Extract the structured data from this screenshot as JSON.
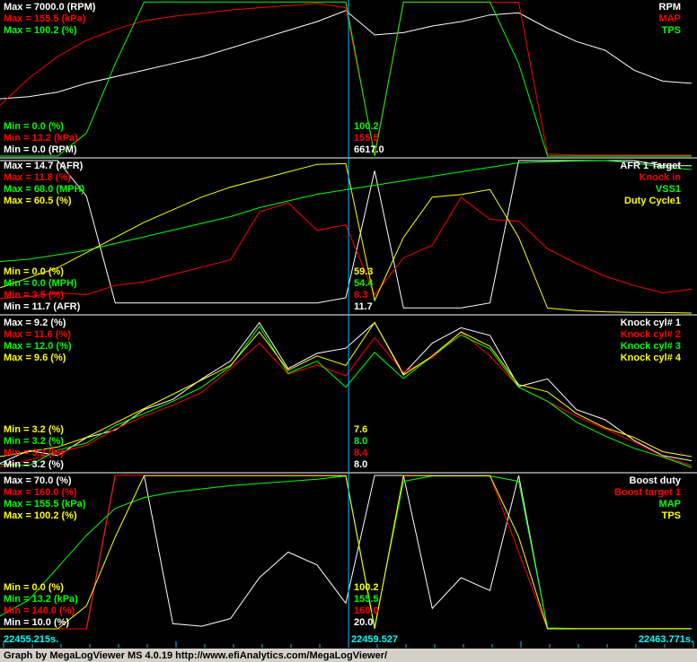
{
  "chart_data": [
    {
      "type": "line",
      "x": [
        22455.215,
        22455.572,
        22455.928,
        22456.285,
        22456.641,
        22456.998,
        22457.354,
        22457.711,
        22458.067,
        22458.424,
        22458.78,
        22459.137,
        22459.493,
        22459.85,
        22460.206,
        22460.563,
        22460.919,
        22461.276,
        22461.632,
        22461.989,
        22462.345,
        22462.702,
        22463.058,
        22463.415,
        22463.771
      ],
      "xlim": [
        22455.215,
        22463.771
      ],
      "series": [
        {
          "name": "RPM",
          "color": "#ffffff",
          "ylim": [
            0,
            7000
          ],
          "yticks": [
            {
              "value": 0,
              "label": "Min = 0.0 (RPM)"
            },
            {
              "value": 7000,
              "label": "Max = 7000.0 (RPM)"
            }
          ],
          "cursor_label": "6617.0",
          "values": [
            2600,
            2700,
            2900,
            3300,
            3600,
            3900,
            4200,
            4500,
            4900,
            5300,
            5700,
            6100,
            6600,
            5500,
            5600,
            5900,
            6100,
            6400,
            6500,
            5800,
            5200,
            4800,
            3900,
            3400,
            3300
          ]
        },
        {
          "name": "MAP",
          "color": "#ff0000",
          "ylim": [
            13.2,
            155.5
          ],
          "yticks": [
            {
              "value": 13.2,
              "label": "Min = 13.2 (kPa)"
            },
            {
              "value": 155.5,
              "label": "Max = 155.5 (kPa)"
            }
          ],
          "cursor_label": "155.5",
          "values": [
            60,
            85,
            105,
            120,
            130,
            138,
            142,
            145,
            148,
            150,
            152,
            154,
            150,
            15,
            155,
            155,
            155,
            155,
            155,
            15,
            14,
            14,
            14,
            14,
            14
          ]
        },
        {
          "name": "TPS",
          "color": "#00ff00",
          "ylim": [
            0,
            100.2
          ],
          "yticks": [
            {
              "value": 0,
              "label": "Min = 0.0 (%)"
            },
            {
              "value": 100.2,
              "label": "Max = 100.2 (%)"
            }
          ],
          "cursor_label": "100.2",
          "values": [
            0,
            0,
            0,
            15,
            60,
            100,
            100,
            100,
            100,
            100,
            100,
            100,
            100,
            0,
            100,
            100,
            100,
            100,
            60,
            0,
            0,
            0,
            0,
            0,
            0
          ]
        }
      ]
    },
    {
      "type": "line",
      "x": [
        22455.215,
        22455.572,
        22455.928,
        22456.285,
        22456.641,
        22456.998,
        22457.354,
        22457.711,
        22458.067,
        22458.424,
        22458.78,
        22459.137,
        22459.493,
        22459.85,
        22460.206,
        22460.563,
        22460.919,
        22461.276,
        22461.632,
        22461.989,
        22462.345,
        22462.702,
        22463.058,
        22463.415,
        22463.771
      ],
      "xlim": [
        22455.215,
        22463.771
      ],
      "series": [
        {
          "name": "AFR 1 Target",
          "color": "#ffffff",
          "ylim": [
            11.7,
            14.7
          ],
          "yticks": [
            {
              "value": 11.7,
              "label": "Min = 11.7 (AFR)"
            },
            {
              "value": 14.7,
              "label": "Max = 14.7 (AFR)"
            }
          ],
          "cursor_label": "11.7",
          "values": [
            14.7,
            14.7,
            14.7,
            14.0,
            11.9,
            11.9,
            11.9,
            11.9,
            11.9,
            11.9,
            11.9,
            11.9,
            12.0,
            14.5,
            11.8,
            11.8,
            11.8,
            11.9,
            14.7,
            14.7,
            14.7,
            14.7,
            14.7,
            14.6,
            14.6
          ]
        },
        {
          "name": "Knock in",
          "color": "#ff0000",
          "ylim": [
            3.5,
            11.8
          ],
          "yticks": [
            {
              "value": 3.5,
              "label": "Min = 3.5 (%)"
            },
            {
              "value": 11.8,
              "label": "Max = 11.8 (%)"
            }
          ],
          "cursor_label": "8.3",
          "values": [
            4.3,
            4.4,
            4.6,
            4.5,
            5.0,
            5.2,
            5.6,
            6.0,
            6.4,
            9.0,
            9.5,
            8.0,
            8.3,
            4.5,
            6.5,
            7.2,
            9.8,
            8.6,
            8.5,
            7.0,
            6.2,
            5.5,
            5.0,
            4.6,
            4.8
          ]
        },
        {
          "name": "VSS1",
          "color": "#00ff00",
          "ylim": [
            0,
            68
          ],
          "yticks": [
            {
              "value": 0,
              "label": "Min = 0.0 (MPH)"
            },
            {
              "value": 68,
              "label": "Max = 68.0 (MPH)"
            }
          ],
          "cursor_label": "54.4",
          "values": [
            23,
            24,
            26,
            28,
            31,
            34,
            37,
            40,
            43,
            47,
            50,
            53,
            55,
            57,
            59,
            61,
            63,
            65,
            67,
            67.5,
            67.8,
            68,
            67,
            65,
            64
          ]
        },
        {
          "name": "Duty Cycle1",
          "color": "#ffff00",
          "ylim": [
            0,
            60.5
          ],
          "yticks": [
            {
              "value": 0,
              "label": "Min = 0.0 (%)"
            },
            {
              "value": 60.5,
              "label": "Max = 60.5 (%)"
            }
          ],
          "cursor_label": "59.3",
          "values": [
            10,
            14,
            18,
            24,
            30,
            36,
            41,
            46,
            50,
            53,
            56,
            59,
            59.3,
            5,
            30,
            46,
            47,
            49,
            30,
            2,
            1,
            0.5,
            0.3,
            0.2,
            0
          ]
        }
      ]
    },
    {
      "type": "line",
      "x": [
        22455.215,
        22455.572,
        22455.928,
        22456.285,
        22456.641,
        22456.998,
        22457.354,
        22457.711,
        22458.067,
        22458.424,
        22458.78,
        22459.137,
        22459.493,
        22459.85,
        22460.206,
        22460.563,
        22460.919,
        22461.276,
        22461.632,
        22461.989,
        22462.345,
        22462.702,
        22463.058,
        22463.415,
        22463.771
      ],
      "xlim": [
        22455.215,
        22463.771
      ],
      "series": [
        {
          "name": "Knock cyl# 1",
          "color": "#ffffff",
          "ylim": [
            3.2,
            9.2
          ],
          "yticks": [
            {
              "value": 3.2,
              "label": "Min = 3.2 (%)"
            },
            {
              "value": 9.2,
              "label": "Max = 9.2 (%)"
            }
          ],
          "cursor_label": "8.0",
          "values": [
            3.5,
            4.0,
            3.8,
            4.5,
            4.8,
            5.6,
            6.0,
            6.8,
            7.5,
            9.0,
            7.2,
            7.8,
            8.0,
            9.0,
            7.0,
            8.2,
            8.8,
            8.5,
            6.5,
            6.8,
            5.6,
            5.2,
            4.4,
            3.8,
            3.6
          ]
        },
        {
          "name": "Knock cyl# 2",
          "color": "#ff0000",
          "ylim": [
            3.2,
            11.6
          ],
          "yticks": [
            {
              "value": 3.2,
              "label": "Min = 3.2 (%)"
            },
            {
              "value": 11.6,
              "label": "Max = 11.6 (%)"
            }
          ],
          "cursor_label": "8.4",
          "values": [
            3.4,
            3.8,
            4.2,
            4.6,
            5.5,
            6.2,
            6.8,
            7.5,
            8.8,
            10.2,
            8.5,
            9.0,
            8.4,
            10.5,
            8.6,
            9.4,
            10.8,
            9.5,
            7.8,
            7.0,
            6.2,
            5.5,
            4.8,
            4.0,
            3.5
          ]
        },
        {
          "name": "Knock cyl# 3",
          "color": "#00ff00",
          "ylim": [
            3.2,
            12.0
          ],
          "yticks": [
            {
              "value": 3.2,
              "label": "Min = 3.2 (%)"
            },
            {
              "value": 12.0,
              "label": "Max = 12.0 (%)"
            }
          ],
          "cursor_label": "8.0",
          "values": [
            3.6,
            3.5,
            4.4,
            4.8,
            5.8,
            6.5,
            7.2,
            8.0,
            9.2,
            11.5,
            8.8,
            9.5,
            8.0,
            10.0,
            8.5,
            9.8,
            11.0,
            10.2,
            8.0,
            7.2,
            6.0,
            5.2,
            4.5,
            4.0,
            3.4
          ]
        },
        {
          "name": "Knock cyl# 4",
          "color": "#ffff00",
          "ylim": [
            3.2,
            9.6
          ],
          "yticks": [
            {
              "value": 3.2,
              "label": "Min = 3.2 (%)"
            },
            {
              "value": 9.6,
              "label": "Max = 9.6 (%)"
            }
          ],
          "cursor_label": "7.6",
          "values": [
            3.8,
            4.0,
            4.2,
            4.6,
            5.2,
            5.8,
            6.4,
            7.0,
            7.6,
            9.0,
            7.4,
            8.0,
            7.6,
            9.4,
            7.2,
            8.0,
            9.0,
            8.4,
            6.8,
            6.5,
            5.6,
            5.0,
            4.6,
            4.0,
            3.8
          ]
        }
      ]
    },
    {
      "type": "line",
      "x": [
        22455.215,
        22455.572,
        22455.928,
        22456.285,
        22456.641,
        22456.998,
        22457.354,
        22457.711,
        22458.067,
        22458.424,
        22458.78,
        22459.137,
        22459.493,
        22459.85,
        22460.206,
        22460.563,
        22460.919,
        22461.276,
        22461.632,
        22461.989,
        22462.345,
        22462.702,
        22463.058,
        22463.415,
        22463.771
      ],
      "xlim": [
        22455.215,
        22463.771
      ],
      "series": [
        {
          "name": "Boost duty",
          "color": "#ffffff",
          "ylim": [
            10,
            70
          ],
          "yticks": [
            {
              "value": 10,
              "label": "Min = 10.0 (%)"
            },
            {
              "value": 70,
              "label": "Max = 70.0 (%)"
            }
          ],
          "cursor_label": "20.0",
          "values": [
            10,
            10,
            10,
            10,
            70,
            70,
            12,
            11,
            14,
            30,
            40,
            35,
            20,
            70,
            70,
            18,
            30,
            25,
            70,
            10,
            10,
            10,
            10,
            10,
            10
          ]
        },
        {
          "name": "Boost target 1",
          "color": "#ff0000",
          "ylim": [
            140,
            160
          ],
          "yticks": [
            {
              "value": 140,
              "label": "Min = 140.0 (%)"
            },
            {
              "value": 160,
              "label": "Max = 160.0 (%)"
            }
          ],
          "cursor_label": "160.0",
          "values": [
            140,
            140,
            140,
            140,
            160,
            160,
            160,
            160,
            160,
            160,
            160,
            160,
            160,
            140,
            160,
            160,
            160,
            160,
            150,
            140,
            140,
            140,
            140,
            140,
            140
          ]
        },
        {
          "name": "MAP",
          "color": "#00ff00",
          "ylim": [
            13.2,
            155.5
          ],
          "yticks": [
            {
              "value": 13.2,
              "label": "Min = 13.2 (kPa)"
            },
            {
              "value": 155.5,
              "label": "Max = 155.5 (kPa)"
            }
          ],
          "cursor_label": "155.5",
          "values": [
            25,
            40,
            70,
            100,
            125,
            135,
            140,
            143,
            146,
            148,
            150,
            152,
            155,
            15,
            150,
            155,
            155,
            155,
            150,
            14,
            13.5,
            13.5,
            13.5,
            13.5,
            13.5
          ]
        },
        {
          "name": "TPS",
          "color": "#ffff00",
          "ylim": [
            0,
            100.2
          ],
          "yticks": [
            {
              "value": 0,
              "label": "Min = 0.0 (%)"
            },
            {
              "value": 100.2,
              "label": "Max = 100.2 (%)"
            }
          ],
          "cursor_label": "100.2",
          "values": [
            0,
            0,
            0,
            15,
            60,
            100,
            100,
            100,
            100,
            100,
            100,
            100,
            100,
            0,
            100,
            100,
            100,
            100,
            60,
            0,
            0,
            0,
            0,
            0,
            0
          ]
        }
      ]
    }
  ],
  "time_axis": {
    "start": "22455.215s.",
    "cursor": {
      "value": 22459.527,
      "label": "22459.527"
    },
    "end": "22463.771s."
  },
  "footer": "Graph by MegaLogViewer MS 4.0.19 http://www.efiAnalytics.com/MegaLogViewer/"
}
